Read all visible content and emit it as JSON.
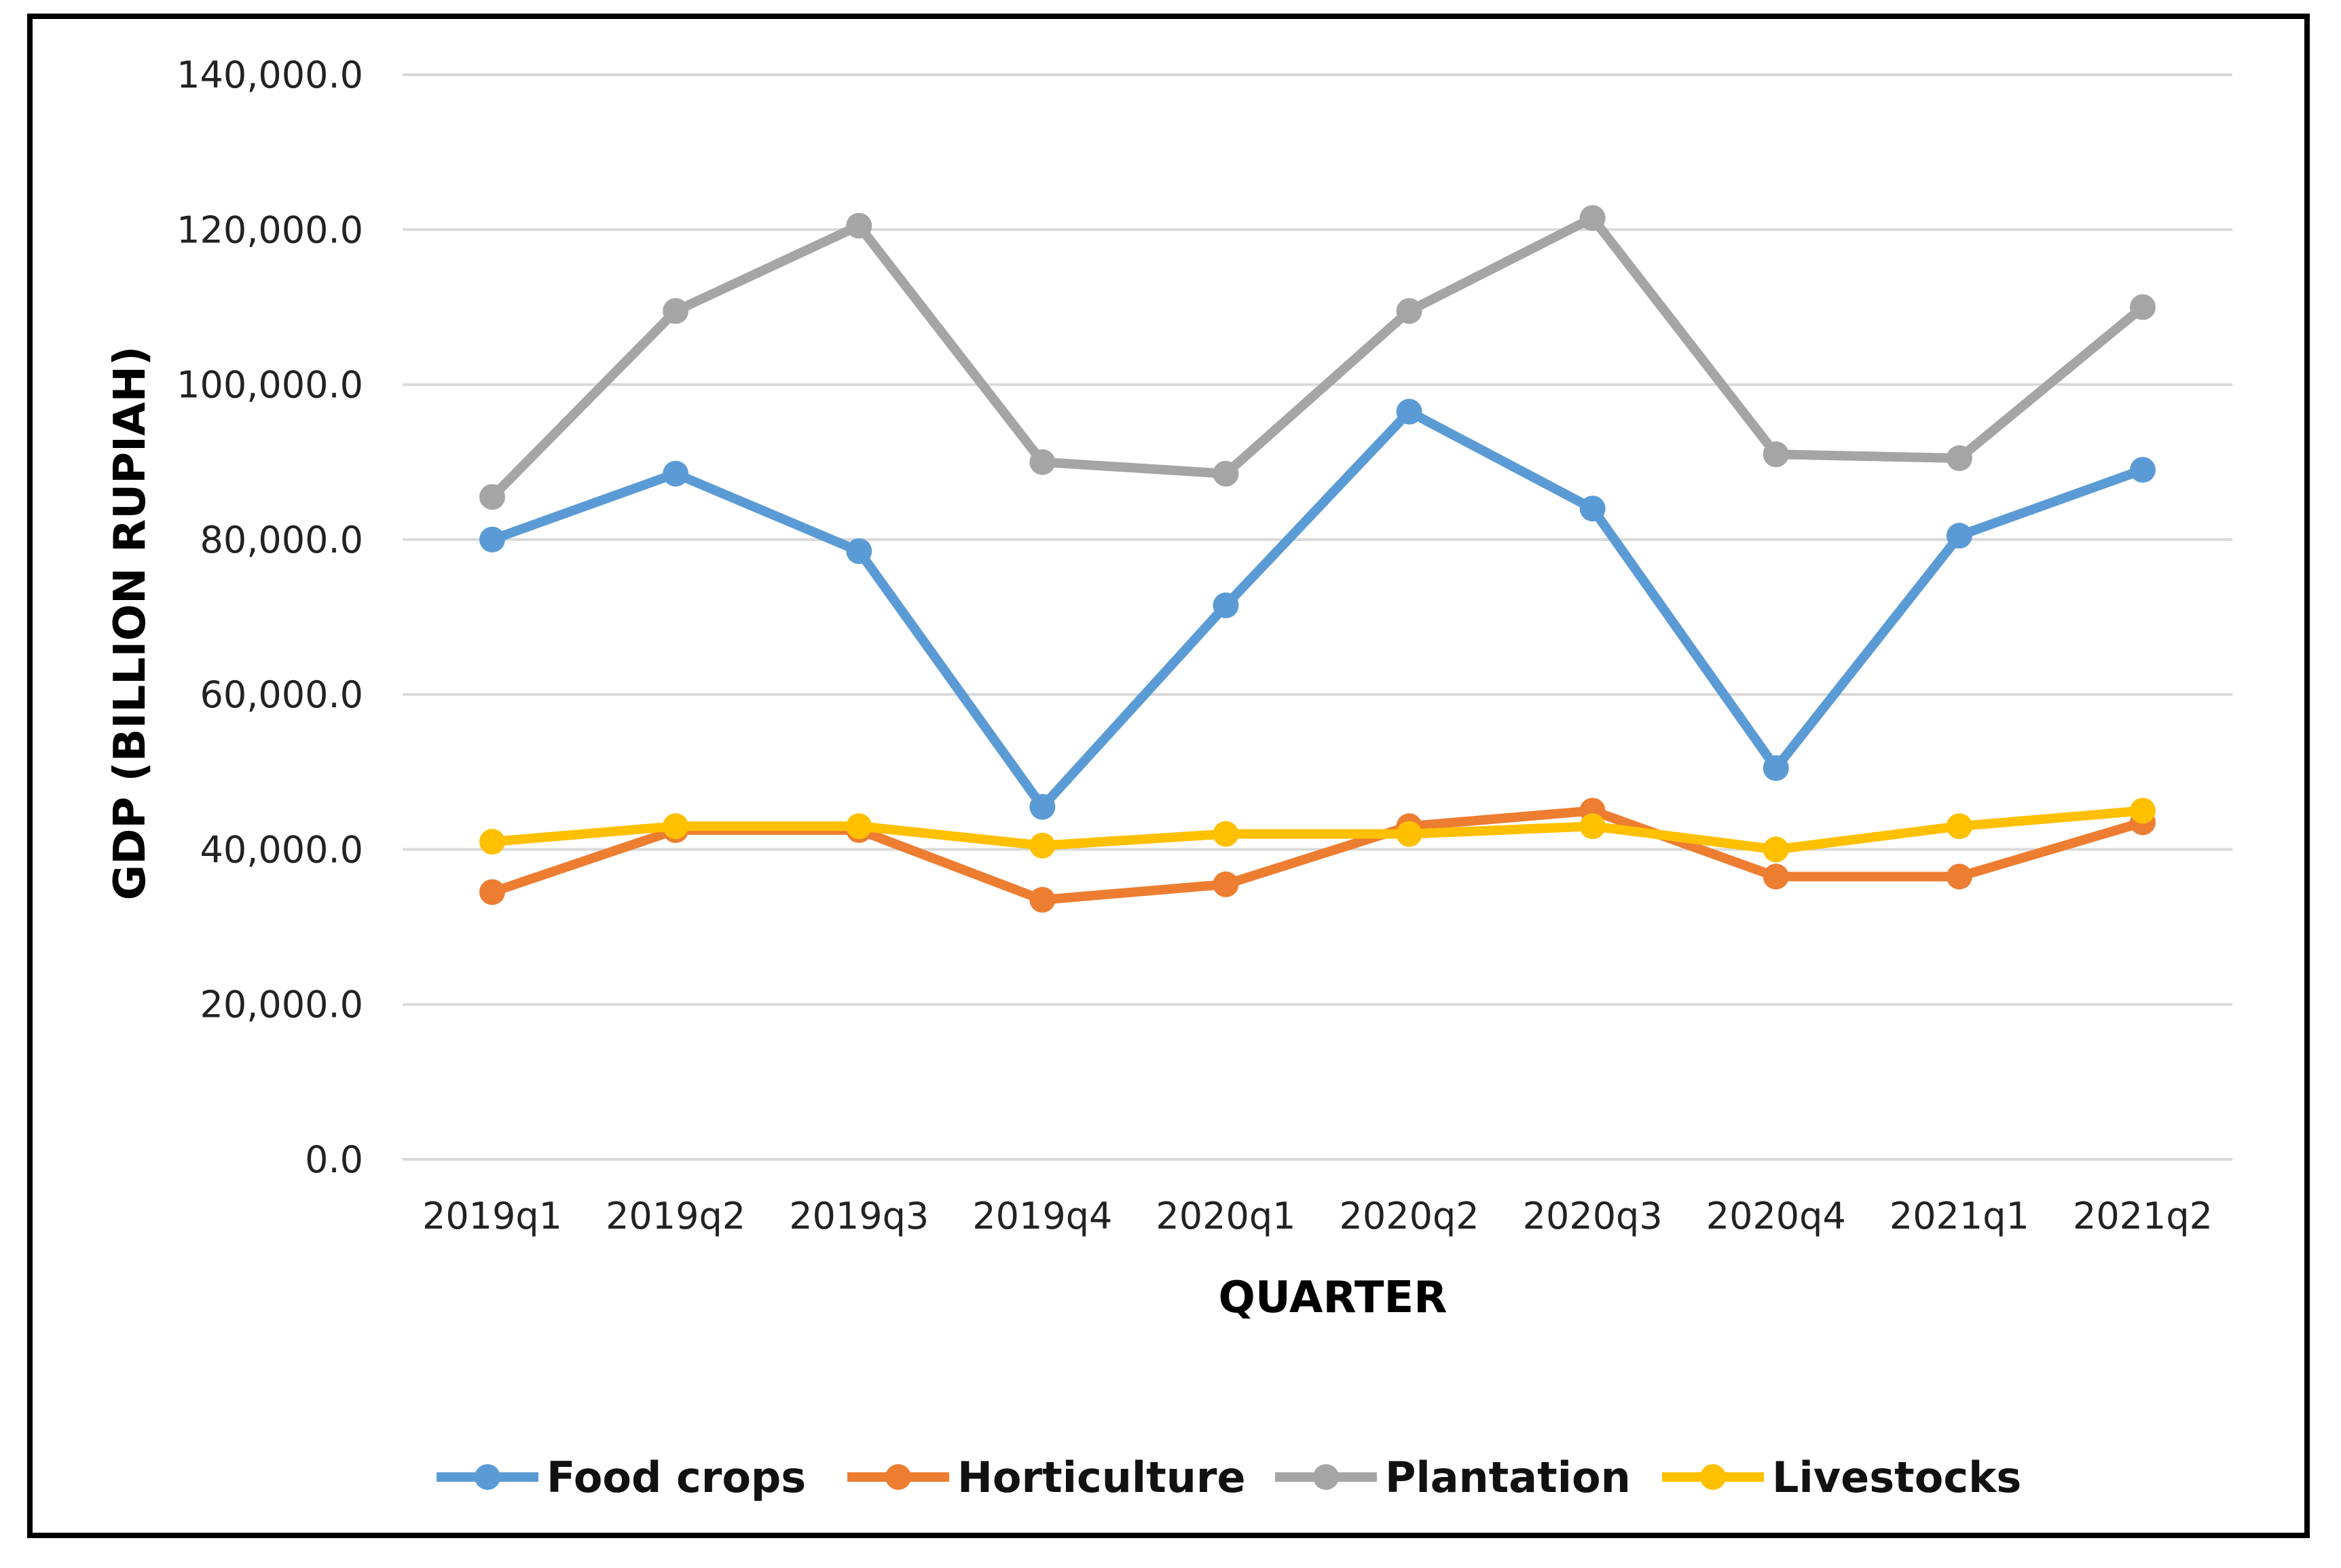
{
  "chart_data": {
    "type": "line",
    "title": "",
    "xlabel": "QUARTER",
    "ylabel": "GDP (BILLION RUPIAH)",
    "ylim": [
      0,
      140000
    ],
    "yticks": [
      "0.0",
      "20,000.0",
      "40,000.0",
      "60,000.0",
      "80,000.0",
      "100,000.0",
      "120,000.0",
      "140,000.0"
    ],
    "ytick_values": [
      0,
      20000,
      40000,
      60000,
      80000,
      100000,
      120000,
      140000
    ],
    "categories": [
      "2019q1",
      "2019q2",
      "2019q3",
      "2019q4",
      "2020q1",
      "2020q2",
      "2020q3",
      "2020q4",
      "2021q1",
      "2021q2"
    ],
    "grid": true,
    "legend_position": "bottom",
    "series": [
      {
        "name": "Food crops",
        "color": "#5B9BD5",
        "values": [
          80000,
          88500,
          78500,
          45500,
          71500,
          96500,
          84000,
          50500,
          80500,
          89000
        ]
      },
      {
        "name": "Horticulture",
        "color": "#ED7D31",
        "values": [
          34500,
          42500,
          42500,
          33500,
          35500,
          43000,
          45000,
          36500,
          36500,
          43500
        ]
      },
      {
        "name": "Plantation",
        "color": "#A5A5A5",
        "values": [
          85500,
          109500,
          120500,
          90000,
          88500,
          109500,
          121500,
          91000,
          90500,
          110000
        ]
      },
      {
        "name": "Livestocks",
        "color": "#FFC000",
        "values": [
          41000,
          43000,
          43000,
          40500,
          42000,
          42000,
          43000,
          40000,
          43000,
          45000
        ]
      }
    ]
  }
}
